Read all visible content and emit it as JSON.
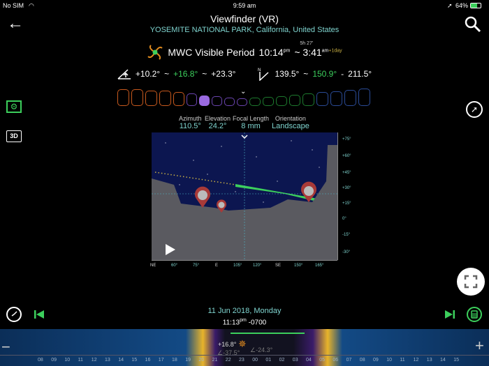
{
  "status_bar": {
    "carrier": "No SIM",
    "time": "9:59 am",
    "battery": "64%"
  },
  "header": {
    "title": "Viewfinder (VR)",
    "location": "YOSEMITE NATIONAL PARK, California, United States"
  },
  "mwc": {
    "label": "MWC Visible Period",
    "start": "10:14",
    "start_ampm": "pm",
    "duration": "5h 27'",
    "end": "3:41",
    "end_ampm": "am",
    "end_offset": "+1day"
  },
  "elevation": {
    "min": "+10.2°",
    "sep1": "~",
    "mid": "+16.8°",
    "sep2": "~",
    "max": "+23.3°"
  },
  "azimuth": {
    "min": "139.5°",
    "sep1": "~",
    "mid": "150.9°",
    "sep2": "-",
    "max": "211.5°"
  },
  "moon_phases": [
    {
      "color": "#c85a1e",
      "w": 17,
      "h": 24
    },
    {
      "color": "#c85a1e",
      "w": 17,
      "h": 24
    },
    {
      "color": "#c85a1e",
      "w": 17,
      "h": 22
    },
    {
      "color": "#c85a1e",
      "w": 17,
      "h": 22
    },
    {
      "color": "#c85a1e",
      "w": 16,
      "h": 20
    },
    {
      "color": "#6b45b0",
      "w": 15,
      "h": 18
    },
    {
      "color": "#9a6ae0",
      "w": 15,
      "h": 15,
      "filled": true
    },
    {
      "color": "#6b45b0",
      "w": 15,
      "h": 14
    },
    {
      "color": "#6b45b0",
      "w": 15,
      "h": 12
    },
    {
      "color": "#6b45b0",
      "w": 15,
      "h": 11
    },
    {
      "color": "#1d7a2e",
      "w": 16,
      "h": 12
    },
    {
      "color": "#1d7a2e",
      "w": 16,
      "h": 13
    },
    {
      "color": "#1d7a2e",
      "w": 16,
      "h": 14
    },
    {
      "color": "#1d7a2e",
      "w": 16,
      "h": 16
    },
    {
      "color": "#1d7a2e",
      "w": 17,
      "h": 18
    },
    {
      "color": "#2b4c98",
      "w": 17,
      "h": 20
    },
    {
      "color": "#2b4c98",
      "w": 17,
      "h": 21
    },
    {
      "color": "#2b4c98",
      "w": 17,
      "h": 23
    },
    {
      "color": "#2b4c98",
      "w": 17,
      "h": 25
    }
  ],
  "viewfinder": {
    "azimuth_label": "Azimuth",
    "azimuth": "110.5°",
    "elevation_label": "Elevation",
    "elevation": "24.2°",
    "focal_label": "Focal Length",
    "focal": "8 mm",
    "orientation_label": "Orientation",
    "orientation": "Landscape",
    "right_scale": [
      "+75°",
      "+60°",
      "+45°",
      "+30°",
      "+15°",
      "0°",
      "-15°",
      "-30°"
    ],
    "bottom_scale": [
      "NE",
      "60°",
      "75°",
      "E",
      "105°",
      "120°",
      "SE",
      "150°",
      "165°"
    ]
  },
  "date": {
    "date": "11 Jun 2018, Monday",
    "time": "11:13",
    "ampm": "pm",
    "tz": "-0700"
  },
  "timeline": {
    "hours": [
      "08",
      "09",
      "10",
      "11",
      "12",
      "13",
      "14",
      "15",
      "16",
      "17",
      "18",
      "19",
      "20",
      "21",
      "22",
      "23",
      "00",
      "01",
      "02",
      "03",
      "04",
      "05",
      "06",
      "07",
      "08",
      "09",
      "10",
      "11",
      "12",
      "13",
      "14",
      "15"
    ],
    "mwc_elevation": "+16.8°",
    "sun_alt": "∠-37.5°",
    "moon_alt": "∠-24.3°"
  },
  "colors": {
    "accent": "#3ccf5c",
    "teal": "#7fd4cf",
    "sky": "#0c1650"
  }
}
